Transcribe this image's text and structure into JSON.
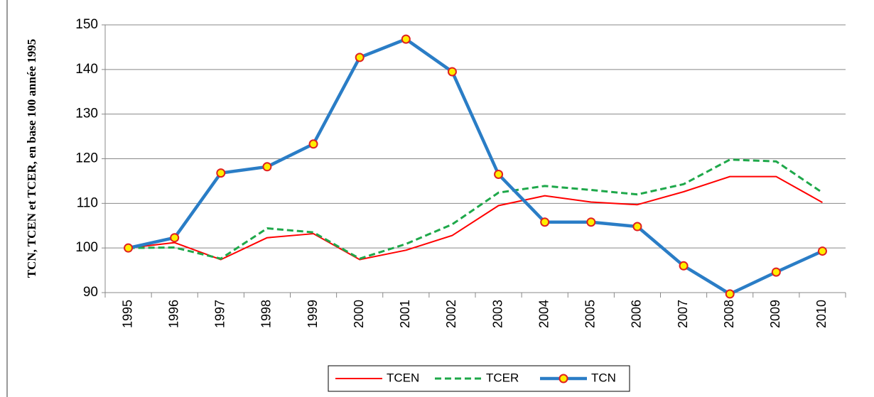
{
  "chart_data": {
    "type": "line",
    "y_label": "TCN, TCEN et TCER, en base 100 année 1995",
    "categories": [
      "1995",
      "1996",
      "1997",
      "1998",
      "1999",
      "2000",
      "2001",
      "2002",
      "2003",
      "2004",
      "2005",
      "2006",
      "2007",
      "2008",
      "2009",
      "2010"
    ],
    "series": [
      {
        "name": "TCEN",
        "color": "#ff0000",
        "line_style": "solid",
        "marker": false,
        "values": [
          100,
          101.2,
          97.4,
          102.3,
          103.2,
          97.4,
          99.5,
          102.8,
          109.5,
          111.7,
          110.3,
          109.7,
          112.6,
          116,
          116,
          110.2
        ]
      },
      {
        "name": "TCER",
        "color": "#1ea84a",
        "line_style": "dashed",
        "marker": false,
        "values": [
          100,
          100.1,
          97.6,
          104.4,
          103.5,
          97.6,
          100.9,
          105.3,
          112.4,
          113.9,
          113,
          112,
          114.3,
          119.8,
          119.4,
          112.4
        ]
      },
      {
        "name": "TCN",
        "color": "#2a7dc6",
        "line_style": "solid",
        "marker": true,
        "values": [
          100,
          102.3,
          116.8,
          118.2,
          123.3,
          142.7,
          146.8,
          139.5,
          116.5,
          105.8,
          105.8,
          104.8,
          96,
          89.7,
          94.6,
          99.3
        ]
      }
    ],
    "ylim": [
      90,
      150
    ],
    "yticks": [
      90,
      100,
      110,
      120,
      130,
      140,
      150
    ],
    "grid": true,
    "legend": "bottom"
  }
}
